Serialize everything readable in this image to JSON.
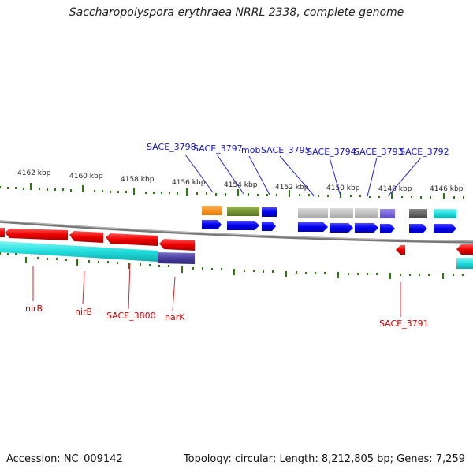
{
  "title": "Saccharopolyspora erythraea NRRL 2338, complete genome",
  "footer": {
    "accession": "Accession: NC_009142",
    "summary": "Topology: circular; Length: 8,212,805 bp; Genes: 7,259"
  },
  "scale_labels": [
    "4162 kbp",
    "4160 kbp",
    "4158 kbp",
    "4156 kbp",
    "4154 kbp",
    "4152 kbp",
    "4150 kbp",
    "4148 kbp",
    "4146 kbp"
  ],
  "top_gene_labels": [
    "SACE_3798",
    "SACE_3797",
    "mob",
    "SACE_3795",
    "SACE_3794",
    "SACE_3793",
    "SACE_3792"
  ],
  "bottom_gene_labels": [
    "nirB",
    "nirB",
    "SACE_3800",
    "narK",
    "SACE_3791"
  ],
  "colors": {
    "forward_cds": "#0000ee",
    "reverse_cds": "#ee0000",
    "label_forward": "#1111cc",
    "label_reverse": "#cc0000",
    "tick": "#2a7a10",
    "backbone": "#888888",
    "cyan_feature": "#22dddd",
    "purple_feature": "#4a3fa0",
    "orange_feature": "#ff8800",
    "olive_feature": "#6f8f2a",
    "grey_feature": "#bbbbbb",
    "dark_grey_feature": "#666666",
    "lavender_feature": "#6a5acd"
  }
}
